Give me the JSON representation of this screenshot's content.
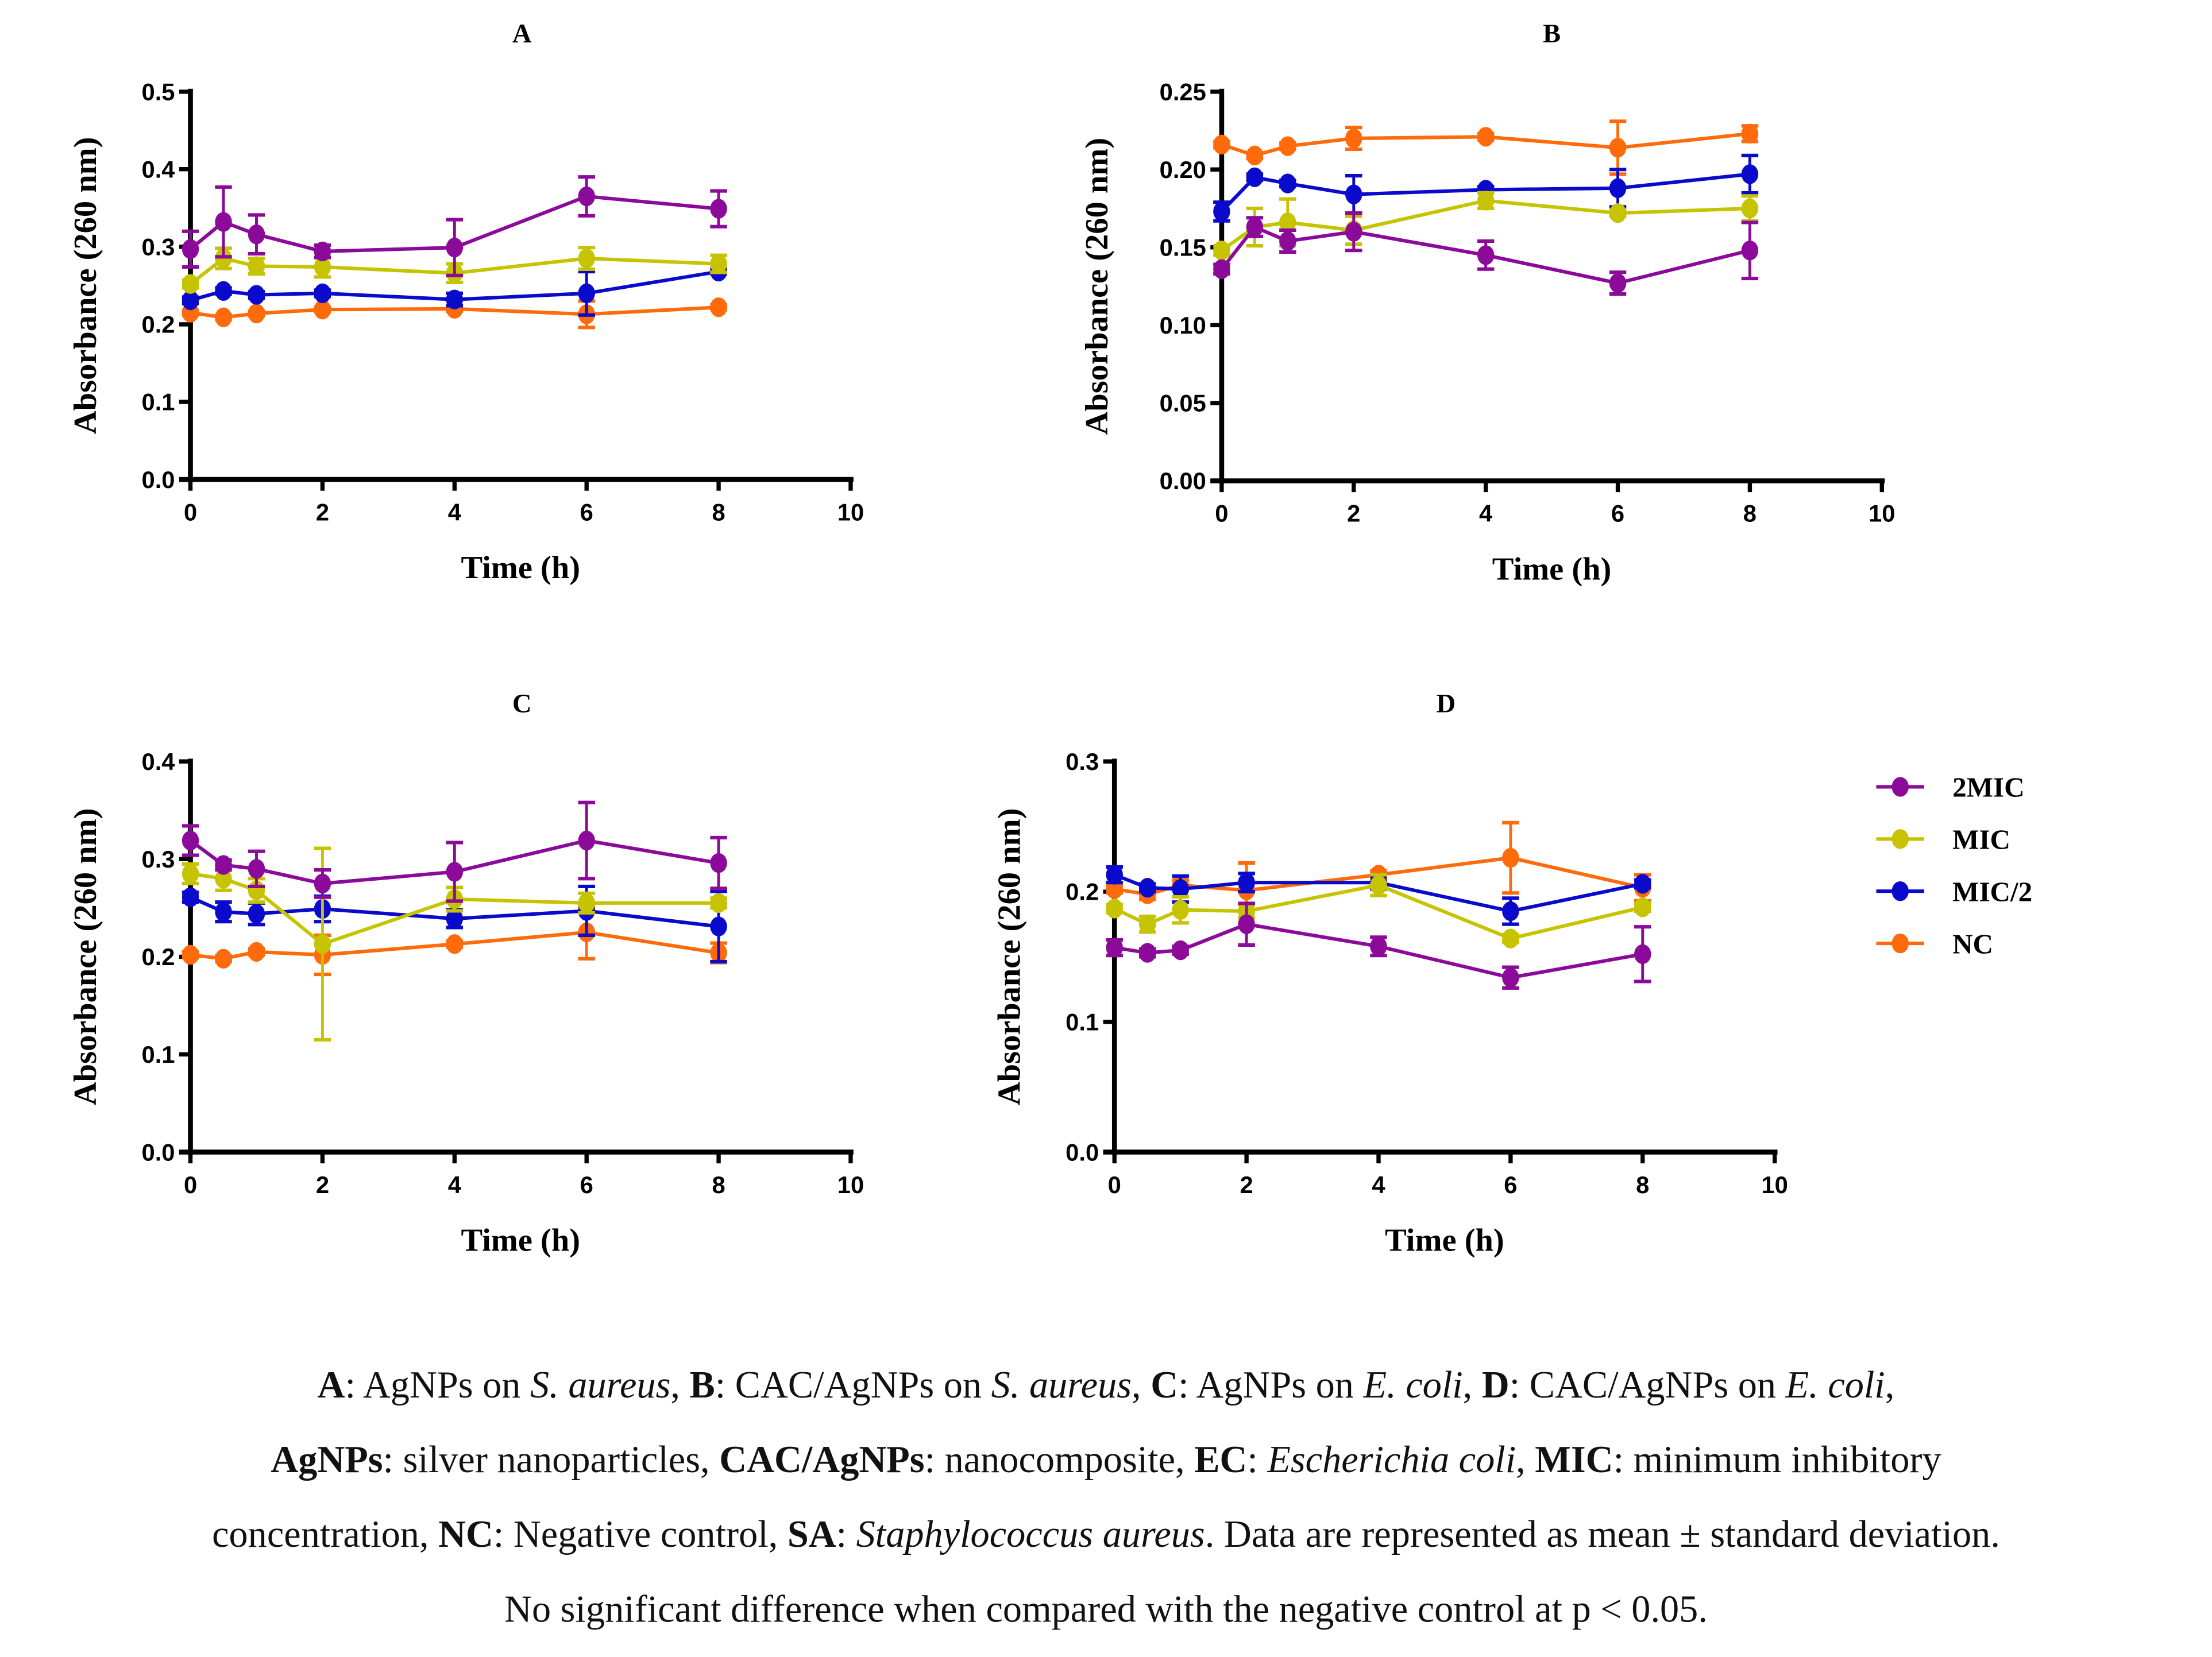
{
  "colors": {
    "2MIC": "#8B0A9A",
    "MIC": "#C6C300",
    "MIC/2": "#0A0ACD",
    "NC": "#FF6A0A"
  },
  "legend": [
    "2MIC",
    "MIC",
    "MIC/2",
    "NC"
  ],
  "chart_data": [
    {
      "type": "line",
      "title": "A",
      "xlabel": "Time (h)",
      "ylabel": "Absorbance (260 nm)",
      "xlim": [
        0,
        10
      ],
      "ylim": [
        0,
        0.5
      ],
      "xticks": [
        "0",
        "2",
        "4",
        "6",
        "8",
        "10"
      ],
      "yticks": [
        "0.0",
        "0.1",
        "0.2",
        "0.3",
        "0.4",
        "0.5"
      ],
      "x": [
        0,
        0.5,
        1,
        2,
        4,
        6,
        8
      ],
      "series": [
        {
          "name": "2MIC",
          "values": [
            0.297,
            0.332,
            0.316,
            0.294,
            0.299,
            0.365,
            0.349
          ],
          "error": [
            0.023,
            0.045,
            0.025,
            0.008,
            0.036,
            0.025,
            0.023
          ]
        },
        {
          "name": "MIC",
          "values": [
            0.252,
            0.285,
            0.275,
            0.274,
            0.266,
            0.285,
            0.278
          ],
          "error": [
            0.005,
            0.013,
            0.01,
            0.013,
            0.012,
            0.014,
            0.011
          ]
        },
        {
          "name": "MIC/2",
          "values": [
            0.231,
            0.243,
            0.238,
            0.24,
            0.232,
            0.24,
            0.268
          ],
          "error": [
            0.004,
            0.004,
            0.004,
            0.004,
            0.008,
            0.028,
            0.003
          ]
        },
        {
          "name": "NC",
          "values": [
            0.215,
            0.209,
            0.214,
            0.219,
            0.22,
            0.213,
            0.222
          ],
          "error": [
            0.003,
            0.003,
            0.003,
            0.003,
            0.003,
            0.017,
            0.003
          ]
        }
      ]
    },
    {
      "type": "line",
      "title": "B",
      "xlabel": "Time (h)",
      "ylabel": "Absorbance (260 nm)",
      "xlim": [
        0,
        10
      ],
      "ylim": [
        0,
        0.25
      ],
      "xticks": [
        "0",
        "2",
        "4",
        "6",
        "8",
        "10"
      ],
      "yticks": [
        "0.00",
        "0.05",
        "0.10",
        "0.15",
        "0.20",
        "0.25"
      ],
      "x": [
        0,
        0.5,
        1,
        2,
        4,
        6,
        8
      ],
      "series": [
        {
          "name": "2MIC",
          "values": [
            0.136,
            0.163,
            0.154,
            0.16,
            0.145,
            0.127,
            0.148
          ],
          "error": [
            0.003,
            0.006,
            0.007,
            0.012,
            0.009,
            0.007,
            0.018
          ]
        },
        {
          "name": "MIC",
          "values": [
            0.148,
            0.163,
            0.166,
            0.161,
            0.18,
            0.172,
            0.175
          ],
          "error": [
            0.003,
            0.012,
            0.015,
            0.009,
            0.005,
            0.002,
            0.008
          ]
        },
        {
          "name": "MIC/2",
          "values": [
            0.173,
            0.195,
            0.191,
            0.184,
            0.187,
            0.188,
            0.197
          ],
          "error": [
            0.006,
            0.002,
            0.002,
            0.012,
            0.002,
            0.012,
            0.012
          ]
        },
        {
          "name": "NC",
          "values": [
            0.216,
            0.209,
            0.215,
            0.22,
            0.221,
            0.214,
            0.223
          ],
          "error": [
            0.002,
            0.002,
            0.002,
            0.007,
            0.002,
            0.017,
            0.005
          ]
        }
      ]
    },
    {
      "type": "line",
      "title": "C",
      "xlabel": "Time (h)",
      "ylabel": "Absorbance (260 nm)",
      "xlim": [
        0,
        10
      ],
      "ylim": [
        0,
        0.4
      ],
      "xticks": [
        "0",
        "2",
        "4",
        "6",
        "8",
        "10"
      ],
      "yticks": [
        "0.0",
        "0.1",
        "0.2",
        "0.3",
        "0.4"
      ],
      "x": [
        0,
        0.5,
        1,
        2,
        4,
        6,
        8
      ],
      "series": [
        {
          "name": "2MIC",
          "values": [
            0.319,
            0.294,
            0.29,
            0.275,
            0.287,
            0.319,
            0.296
          ],
          "error": [
            0.015,
            0.005,
            0.018,
            0.014,
            0.03,
            0.039,
            0.026
          ]
        },
        {
          "name": "MIC",
          "values": [
            0.285,
            0.28,
            0.268,
            0.213,
            0.259,
            0.255,
            0.255
          ],
          "error": [
            0.01,
            0.012,
            0.012,
            0.098,
            0.012,
            0.01,
            0.005
          ]
        },
        {
          "name": "MIC/2",
          "values": [
            0.261,
            0.246,
            0.244,
            0.249,
            0.239,
            0.247,
            0.231
          ],
          "error": [
            0.005,
            0.01,
            0.011,
            0.013,
            0.009,
            0.025,
            0.036
          ]
        },
        {
          "name": "NC",
          "values": [
            0.202,
            0.198,
            0.205,
            0.202,
            0.213,
            0.225,
            0.204
          ],
          "error": [
            0.003,
            0.003,
            0.003,
            0.02,
            0.003,
            0.027,
            0.01
          ]
        }
      ]
    },
    {
      "type": "line",
      "title": "D",
      "xlabel": "Time (h)",
      "ylabel": "Absorbance (260 nm)",
      "xlim": [
        0,
        10
      ],
      "ylim": [
        0,
        0.3
      ],
      "xticks": [
        "0",
        "2",
        "4",
        "6",
        "8",
        "10"
      ],
      "yticks": [
        "0.0",
        "0.1",
        "0.2",
        "0.3"
      ],
      "x": [
        0,
        0.5,
        1,
        2,
        4,
        6,
        8
      ],
      "series": [
        {
          "name": "2MIC",
          "values": [
            0.157,
            0.153,
            0.155,
            0.175,
            0.158,
            0.134,
            0.152
          ],
          "error": [
            0.006,
            0.003,
            0.003,
            0.016,
            0.007,
            0.008,
            0.021
          ]
        },
        {
          "name": "MIC",
          "values": [
            0.187,
            0.175,
            0.186,
            0.185,
            0.205,
            0.164,
            0.188
          ],
          "error": [
            0.003,
            0.006,
            0.01,
            0.005,
            0.008,
            0.003,
            0.003
          ]
        },
        {
          "name": "MIC/2",
          "values": [
            0.213,
            0.203,
            0.202,
            0.207,
            0.207,
            0.185,
            0.206
          ],
          "error": [
            0.006,
            0.003,
            0.01,
            0.007,
            0.005,
            0.01,
            0.003
          ]
        },
        {
          "name": "NC",
          "values": [
            0.202,
            0.198,
            0.205,
            0.201,
            0.213,
            0.226,
            0.203
          ],
          "error": [
            0.003,
            0.004,
            0.004,
            0.021,
            0.003,
            0.027,
            0.01
          ]
        }
      ]
    }
  ],
  "caption": [
    [
      {
        "t": "A",
        "s": "b"
      },
      {
        "t": ": AgNPs on ",
        "s": ""
      },
      {
        "t": "S. aureus",
        "s": "i"
      },
      {
        "t": ", ",
        "s": ""
      },
      {
        "t": "B",
        "s": "b"
      },
      {
        "t": ": CAC/AgNPs on ",
        "s": ""
      },
      {
        "t": "S. aureus",
        "s": "i"
      },
      {
        "t": ", ",
        "s": ""
      },
      {
        "t": "C",
        "s": "b"
      },
      {
        "t": ": AgNPs on ",
        "s": ""
      },
      {
        "t": "E. coli",
        "s": "i"
      },
      {
        "t": ", ",
        "s": ""
      },
      {
        "t": "D",
        "s": "b"
      },
      {
        "t": ": CAC/AgNPs on ",
        "s": ""
      },
      {
        "t": "E. coli",
        "s": "i"
      },
      {
        "t": ",",
        "s": ""
      }
    ],
    [
      {
        "t": "AgNPs",
        "s": "b"
      },
      {
        "t": ": silver nanoparticles, ",
        "s": ""
      },
      {
        "t": "CAC/AgNPs",
        "s": "b"
      },
      {
        "t": ": nanocomposite, ",
        "s": ""
      },
      {
        "t": "EC",
        "s": "b"
      },
      {
        "t": ": ",
        "s": ""
      },
      {
        "t": "Escherichia coli",
        "s": "i"
      },
      {
        "t": ", ",
        "s": ""
      },
      {
        "t": "MIC",
        "s": "b"
      },
      {
        "t": ": minimum inhibitory",
        "s": ""
      }
    ],
    [
      {
        "t": "concentration, ",
        "s": ""
      },
      {
        "t": "NC",
        "s": "b"
      },
      {
        "t": ": Negative control, ",
        "s": ""
      },
      {
        "t": "SA",
        "s": "b"
      },
      {
        "t": ": ",
        "s": ""
      },
      {
        "t": "Staphylococcus aureus",
        "s": "i"
      },
      {
        "t": ". Data are represented as mean ± standard deviation.",
        "s": ""
      }
    ],
    [
      {
        "t": "No significant difference when compared with the negative control at p < 0.05.",
        "s": ""
      }
    ]
  ]
}
